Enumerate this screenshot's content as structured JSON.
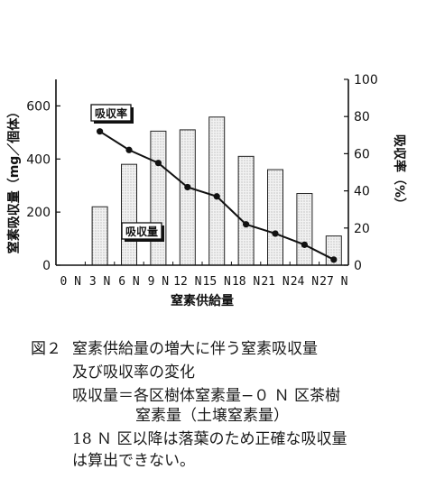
{
  "chart_data": {
    "type": "bar+line",
    "categories": [
      "0 N",
      "3 N",
      "6 N",
      "9 N",
      "12 N",
      "15 N",
      "18 N",
      "21 N",
      "24 N",
      "27 N"
    ],
    "series": [
      {
        "name": "吸収量",
        "kind": "bar",
        "axis": "left",
        "values": [
          null,
          220,
          380,
          505,
          510,
          558,
          410,
          360,
          270,
          110
        ]
      },
      {
        "name": "吸収率",
        "kind": "line",
        "axis": "right",
        "values": [
          null,
          72,
          62,
          55,
          42,
          37,
          22,
          17,
          11,
          3
        ]
      }
    ],
    "xlabel": "窒素供給量",
    "ylabel_left": "窒素吸収量（mg／個体）",
    "ylabel_right": "吸収率（%）",
    "ylim_left": [
      0,
      700
    ],
    "yticks_left": [
      "0",
      "200",
      "400",
      "600"
    ],
    "ylim_right": [
      0,
      100
    ],
    "yticks_right": [
      "0",
      "20",
      "40",
      "60",
      "80",
      "100"
    ],
    "grid": false,
    "legend": "inline labels"
  },
  "caption": {
    "fig_no": "図２",
    "title_line1": "窒素供給量の増大に伴う窒素吸収量",
    "title_line2": "及び吸収率の変化",
    "note_line1": "吸収量＝各区樹体窒素量−０ Ｎ 区茶樹",
    "note_line2": "窒素量（土壌窒素量）",
    "note_line3": "18 Ｎ 区以降は落葉のため正確な吸収量",
    "note_line4": "は算出できない。"
  }
}
